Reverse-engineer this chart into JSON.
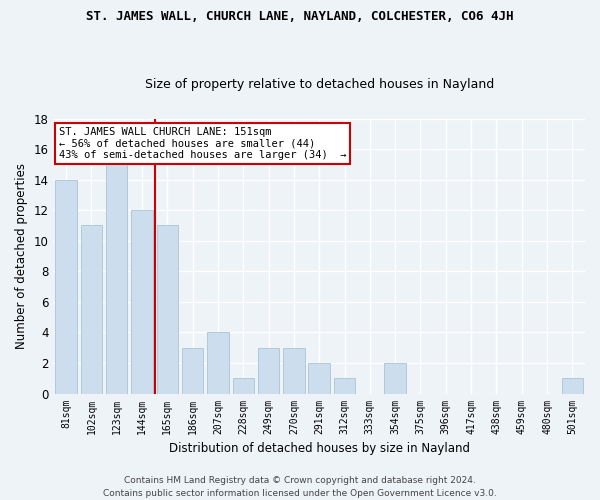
{
  "title": "ST. JAMES WALL, CHURCH LANE, NAYLAND, COLCHESTER, CO6 4JH",
  "subtitle": "Size of property relative to detached houses in Nayland",
  "xlabel": "Distribution of detached houses by size in Nayland",
  "ylabel": "Number of detached properties",
  "bar_color": "#ccdded",
  "bar_edge_color": "#aac4d8",
  "categories": [
    "81sqm",
    "102sqm",
    "123sqm",
    "144sqm",
    "165sqm",
    "186sqm",
    "207sqm",
    "228sqm",
    "249sqm",
    "270sqm",
    "291sqm",
    "312sqm",
    "333sqm",
    "354sqm",
    "375sqm",
    "396sqm",
    "417sqm",
    "438sqm",
    "459sqm",
    "480sqm",
    "501sqm"
  ],
  "values": [
    14,
    11,
    15,
    12,
    11,
    3,
    4,
    1,
    3,
    3,
    2,
    1,
    0,
    2,
    0,
    0,
    0,
    0,
    0,
    0,
    1
  ],
  "ylim": [
    0,
    18
  ],
  "yticks": [
    0,
    2,
    4,
    6,
    8,
    10,
    12,
    14,
    16,
    18
  ],
  "vline_x": 3.5,
  "vline_color": "#cc0000",
  "annotation_line1": "ST. JAMES WALL CHURCH LANE: 151sqm",
  "annotation_line2": "← 56% of detached houses are smaller (44)",
  "annotation_line3": "43% of semi-detached houses are larger (34)  →",
  "annotation_box_color": "#ffffff",
  "annotation_box_edge": "#cc0000",
  "footer": "Contains HM Land Registry data © Crown copyright and database right 2024.\nContains public sector information licensed under the Open Government Licence v3.0.",
  "background_color": "#eef3f8",
  "grid_color": "#ffffff"
}
